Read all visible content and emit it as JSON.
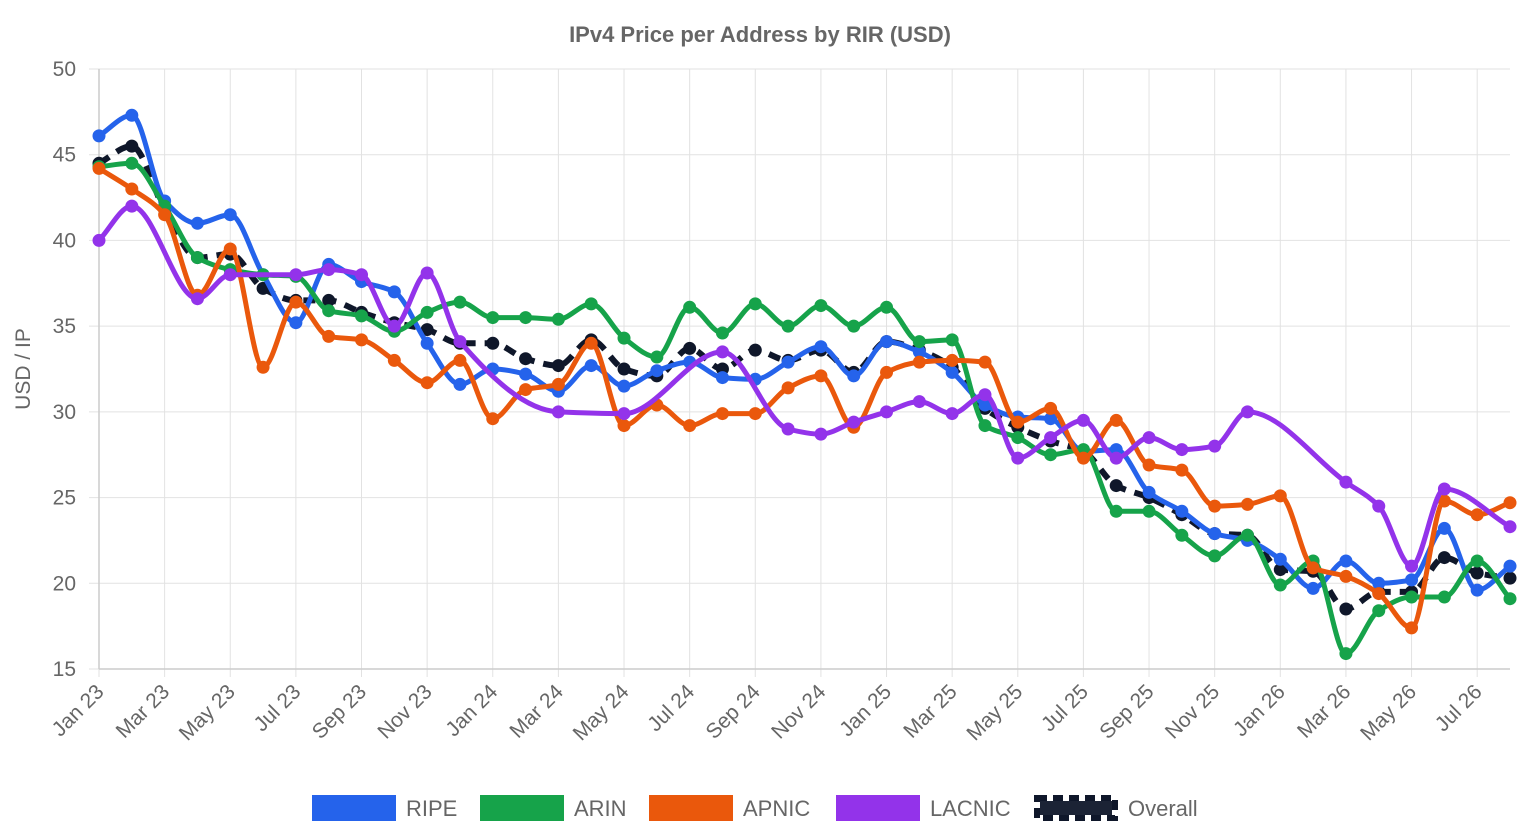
{
  "chart_data": {
    "type": "line",
    "title": "IPv4 Price per Address by RIR (USD)",
    "ylabel": "USD / IP",
    "xlabel": "",
    "ylim": [
      15,
      50
    ],
    "yticks": [
      "15",
      "20",
      "25",
      "30",
      "35",
      "40",
      "45",
      "50"
    ],
    "grid": true,
    "legend_position": "bottom",
    "x": [
      "Jan 23",
      "Feb 23",
      "Mar 23",
      "Apr 23",
      "May 23",
      "Jun 23",
      "Jul 23",
      "Aug 23",
      "Sep 23",
      "Oct 23",
      "Nov 23",
      "Dec 23",
      "Jan 24",
      "Feb 24",
      "Mar 24",
      "Apr 24",
      "May 24",
      "Jun 24",
      "Jul 24",
      "Aug 24",
      "Sep 24",
      "Oct 24",
      "Nov 24",
      "Dec 24",
      "Jan 25",
      "Feb 25",
      "Mar 25",
      "Apr 25",
      "May 25",
      "Jun 25",
      "Jul 25",
      "Aug 25",
      "Sep 25",
      "Oct 25",
      "Nov 25",
      "Dec 25",
      "Jan 26",
      "Feb 26",
      "Mar 26",
      "Apr 26",
      "May 26",
      "Jun 26",
      "Jul 26",
      "Aug 26"
    ],
    "x_tick_labels": [
      "Jan 23",
      "Mar 23",
      "May 23",
      "Jul 23",
      "Sep 23",
      "Nov 23",
      "Jan 24",
      "Mar 24",
      "May 24",
      "Jul 24",
      "Sep 24",
      "Nov 24",
      "Jan 25",
      "Mar 25",
      "May 25",
      "Jul 25",
      "Sep 25",
      "Nov 25",
      "Jan 26",
      "Mar 26",
      "May 26",
      "Jul 26"
    ],
    "series": [
      {
        "name": "RIPE",
        "color": "#2563eb",
        "dashed": false,
        "values": [
          46.1,
          47.3,
          42.3,
          41.0,
          41.5,
          38.0,
          35.2,
          38.6,
          37.6,
          37.0,
          34.0,
          31.6,
          32.5,
          32.2,
          31.2,
          32.7,
          31.5,
          32.4,
          32.9,
          32.0,
          31.9,
          32.9,
          33.8,
          32.1,
          34.1,
          33.5,
          32.3,
          30.4,
          29.7,
          29.6,
          27.7,
          27.8,
          25.3,
          24.2,
          22.9,
          22.5,
          21.4,
          19.7,
          21.3,
          20.0,
          20.2,
          23.2,
          19.6,
          21.0
        ]
      },
      {
        "name": "ARIN",
        "color": "#16a34a",
        "dashed": false,
        "values": [
          44.3,
          44.5,
          42.0,
          39.0,
          38.3,
          38.0,
          37.9,
          35.9,
          35.6,
          34.7,
          35.8,
          36.4,
          35.5,
          35.5,
          35.4,
          36.3,
          34.3,
          33.2,
          36.1,
          34.6,
          36.3,
          35.0,
          36.2,
          35.0,
          36.1,
          34.1,
          34.2,
          29.2,
          28.5,
          27.5,
          27.8,
          24.2,
          24.2,
          22.8,
          21.6,
          22.8,
          19.9,
          21.3,
          15.9,
          18.4,
          19.2,
          19.2,
          21.3,
          19.1
        ]
      },
      {
        "name": "APNIC",
        "color": "#ea580c",
        "dashed": false,
        "values": [
          44.2,
          43.0,
          41.5,
          36.8,
          39.5,
          32.6,
          36.4,
          34.4,
          34.2,
          33.0,
          31.7,
          33.0,
          29.6,
          31.3,
          31.6,
          34.0,
          29.2,
          30.4,
          29.2,
          29.9,
          29.9,
          31.4,
          32.1,
          29.1,
          32.3,
          32.9,
          33.0,
          32.9,
          29.4,
          30.2,
          27.3,
          29.5,
          26.9,
          26.6,
          24.5,
          24.6,
          25.1,
          20.9,
          20.4,
          19.4,
          17.4,
          24.8,
          24.0,
          24.7
        ]
      },
      {
        "name": "LACNIC",
        "color": "#9333ea",
        "dashed": false,
        "values": [
          40.0,
          42.0,
          null,
          36.6,
          38.0,
          null,
          38.0,
          38.3,
          38.0,
          35.0,
          38.1,
          34.1,
          null,
          null,
          30.0,
          null,
          29.9,
          null,
          null,
          33.5,
          null,
          29.0,
          28.7,
          29.4,
          30.0,
          30.6,
          29.9,
          31.0,
          27.3,
          28.5,
          29.5,
          27.3,
          28.5,
          27.8,
          28.0,
          30.0,
          null,
          null,
          25.9,
          24.5,
          21.0,
          25.5,
          null,
          23.3
        ]
      },
      {
        "name": "Overall",
        "color": "#0f172a",
        "dashed": true,
        "values": [
          44.5,
          45.5,
          41.8,
          39.0,
          39.2,
          37.2,
          36.5,
          36.5,
          35.8,
          35.2,
          34.8,
          34.0,
          34.0,
          33.1,
          32.7,
          34.2,
          32.5,
          32.1,
          33.7,
          32.5,
          33.6,
          33.0,
          33.6,
          32.3,
          34.1,
          33.6,
          32.6,
          30.2,
          29.1,
          28.3,
          27.7,
          25.7,
          25.0,
          24.0,
          22.9,
          22.8,
          20.8,
          20.7,
          18.5,
          19.5,
          19.5,
          21.5,
          20.6,
          20.3
        ]
      }
    ]
  }
}
